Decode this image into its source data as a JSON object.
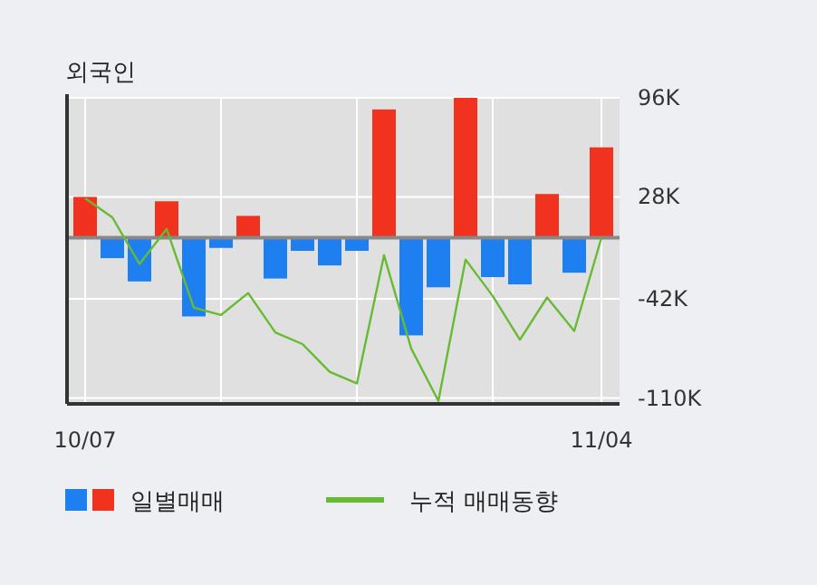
{
  "chart_data": {
    "type": "bar",
    "title": "외국인",
    "categories": [
      "10/07",
      null,
      null,
      null,
      null,
      null,
      null,
      null,
      null,
      null,
      null,
      null,
      null,
      null,
      null,
      null,
      null,
      null,
      null,
      "11/04"
    ],
    "series": [
      {
        "name": "일별매매",
        "colors": [
          "#f0321e",
          "#1e7ff0",
          "#1e7ff0",
          "#f0321e",
          "#1e7ff0",
          "#1e7ff0",
          "#f0321e",
          "#1e7ff0",
          "#1e7ff0",
          "#1e7ff0",
          "#1e7ff0",
          "#f0321e",
          "#1e7ff0",
          "#1e7ff0",
          "#f0321e",
          "#1e7ff0",
          "#1e7ff0",
          "#f0321e",
          "#1e7ff0",
          "#f0321e"
        ],
        "values": [
          28,
          -14,
          -30,
          25,
          -54,
          -7,
          15,
          -28,
          -9,
          -19,
          -9,
          88,
          -67,
          -34,
          96,
          -27,
          -32,
          30,
          -24,
          62
        ]
      },
      {
        "name": "누적 매매동향",
        "type": "line",
        "color": "#66bb33",
        "values": [
          27,
          14,
          -18,
          6,
          -48,
          -53,
          -38,
          -65,
          -73,
          -92,
          -100,
          -12,
          -76,
          -112,
          -15,
          -40,
          -70,
          -41,
          -64,
          0
        ]
      }
    ],
    "ylim": [
      -114,
      96
    ],
    "yticks": [
      {
        "value": 96,
        "label": "96K"
      },
      {
        "value": 28,
        "label": "28K"
      },
      {
        "value": -42,
        "label": "-42K"
      },
      {
        "value": -110,
        "label": "-110K"
      }
    ],
    "grid": true,
    "legend": "bottom"
  }
}
